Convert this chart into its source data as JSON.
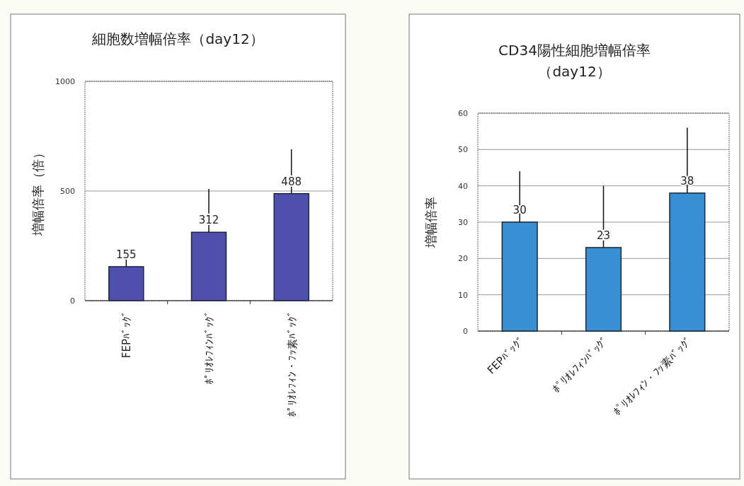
{
  "chart_data": [
    {
      "type": "bar",
      "title": "細胞数増幅倍率（day12）",
      "ylabel": "増幅倍率（倍）",
      "categories": [
        "FEPﾊﾞｯｸﾞ",
        "ﾎﾟﾘｵﾚﾌｨﾝﾊﾞｯｸﾞ",
        "ﾎﾟﾘｵﾚﾌｨﾝ・ﾌｯ素ﾊﾞｯｸﾞ"
      ],
      "values": [
        155,
        312,
        488
      ],
      "errors": [
        [
          155,
          225
        ],
        [
          312,
          510
        ],
        [
          488,
          690
        ]
      ],
      "color": "#4f4fae",
      "data_labels": true,
      "ylim": [
        0,
        1000
      ],
      "yticks": [
        0,
        500,
        1000
      ],
      "grid": "y"
    },
    {
      "type": "bar",
      "title": "CD34陽性細胞増幅倍率（day12）",
      "ylabel": "増幅倍率",
      "categories": [
        "FEPﾊﾞｯｸﾞ",
        "ﾎﾟﾘｵﾚﾌｨﾝﾊﾞｯｸﾞ",
        "ﾎﾟﾘｵﾚﾌｨﾝ・ﾌｯ素ﾊﾞｯｸﾞ"
      ],
      "values": [
        30,
        23,
        38
      ],
      "errors": [
        [
          30,
          44
        ],
        [
          23,
          40
        ],
        [
          38,
          56
        ]
      ],
      "color": "#3a8fd2",
      "data_labels": true,
      "ylim": [
        0,
        60
      ],
      "yticks": [
        0,
        10,
        20,
        30,
        40,
        50,
        60
      ],
      "grid": "y"
    }
  ]
}
